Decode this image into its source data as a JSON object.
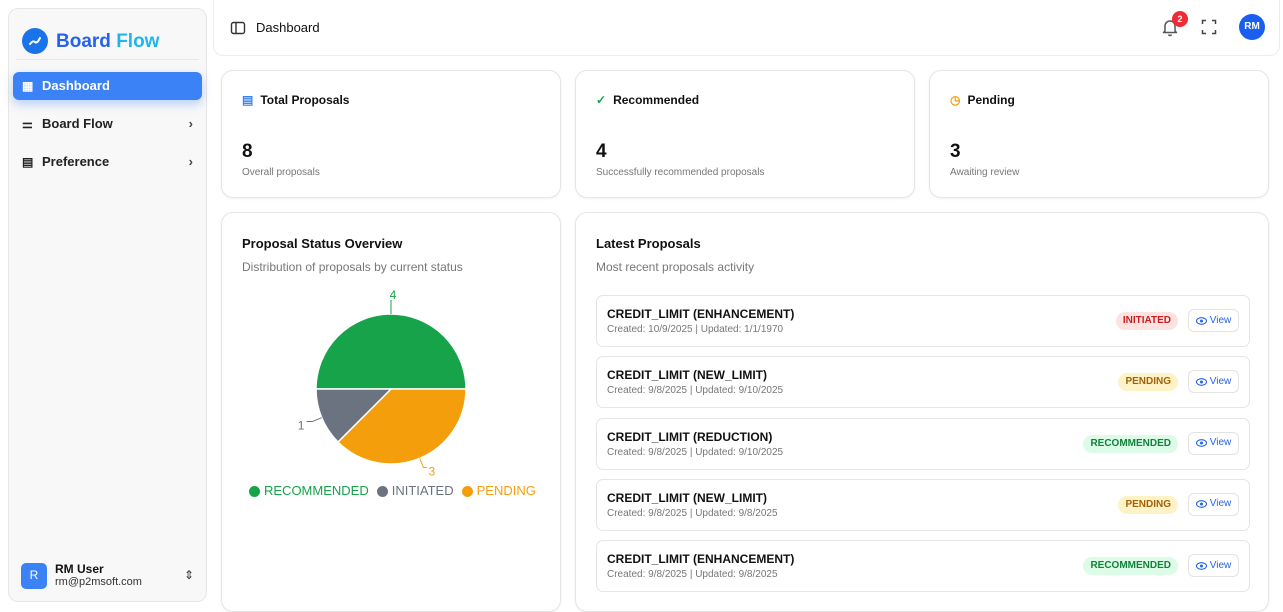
{
  "app": {
    "name_part1": "Board",
    "name_part2": "Flow"
  },
  "sidebar": {
    "items": [
      {
        "label": "Dashboard",
        "icon": "grid-icon",
        "active": true
      },
      {
        "label": "Board Flow",
        "icon": "sliders-icon"
      },
      {
        "label": "Preference",
        "icon": "document-icon"
      }
    ],
    "user": {
      "initial": "R",
      "name": "RM User",
      "email": "rm@p2msoft.com"
    }
  },
  "header": {
    "breadcrumb": "Dashboard",
    "notifications": "2",
    "avatar": "RM"
  },
  "stats": [
    {
      "title": "Total Proposals",
      "value": "8",
      "subtitle": "Overall proposals",
      "icon": "file-icon",
      "color": "#3b82f6"
    },
    {
      "title": "Recommended",
      "value": "4",
      "subtitle": "Successfully recommended proposals",
      "icon": "check-circle-icon",
      "color": "#16a34a"
    },
    {
      "title": "Pending",
      "value": "3",
      "subtitle": "Awaiting review",
      "icon": "clock-icon",
      "color": "#f59e0b"
    }
  ],
  "overview": {
    "title": "Proposal Status Overview",
    "subtitle": "Distribution of proposals by current status"
  },
  "chart_data": {
    "type": "pie",
    "slices": [
      {
        "name": "RECOMMENDED",
        "value": 4,
        "label": "4",
        "color": "#16a34a"
      },
      {
        "name": "PENDING",
        "value": 3,
        "label": "3",
        "color": "#f59e0b"
      },
      {
        "name": "INITIATED",
        "value": 1,
        "label": "1",
        "color": "#6b7280"
      }
    ],
    "legend": [
      "RECOMMENDED",
      "INITIATED",
      "PENDING"
    ],
    "legend_placement": "bottom"
  },
  "latest": {
    "title": "Latest Proposals",
    "subtitle": "Most recent proposals activity",
    "view_label": "View",
    "items": [
      {
        "title": "CREDIT_LIMIT (ENHANCEMENT)",
        "dates": "Created: 10/9/2025 | Updated: 1/1/1970",
        "status": "INITIATED"
      },
      {
        "title": "CREDIT_LIMIT (NEW_LIMIT)",
        "dates": "Created: 9/8/2025 | Updated: 9/10/2025",
        "status": "PENDING"
      },
      {
        "title": "CREDIT_LIMIT (REDUCTION)",
        "dates": "Created: 9/8/2025 | Updated: 9/10/2025",
        "status": "RECOMMENDED"
      },
      {
        "title": "CREDIT_LIMIT (NEW_LIMIT)",
        "dates": "Created: 9/8/2025 | Updated: 9/8/2025",
        "status": "PENDING"
      },
      {
        "title": "CREDIT_LIMIT (ENHANCEMENT)",
        "dates": "Created: 9/8/2025 | Updated: 9/8/2025",
        "status": "RECOMMENDED"
      }
    ]
  },
  "status_colors": {
    "INITIATED": {
      "bg": "#fde2e2",
      "fg": "#c81e1e"
    },
    "PENDING": {
      "bg": "#fef3c7",
      "fg": "#a16207"
    },
    "RECOMMENDED": {
      "bg": "#dcfce7",
      "fg": "#15803d"
    }
  }
}
